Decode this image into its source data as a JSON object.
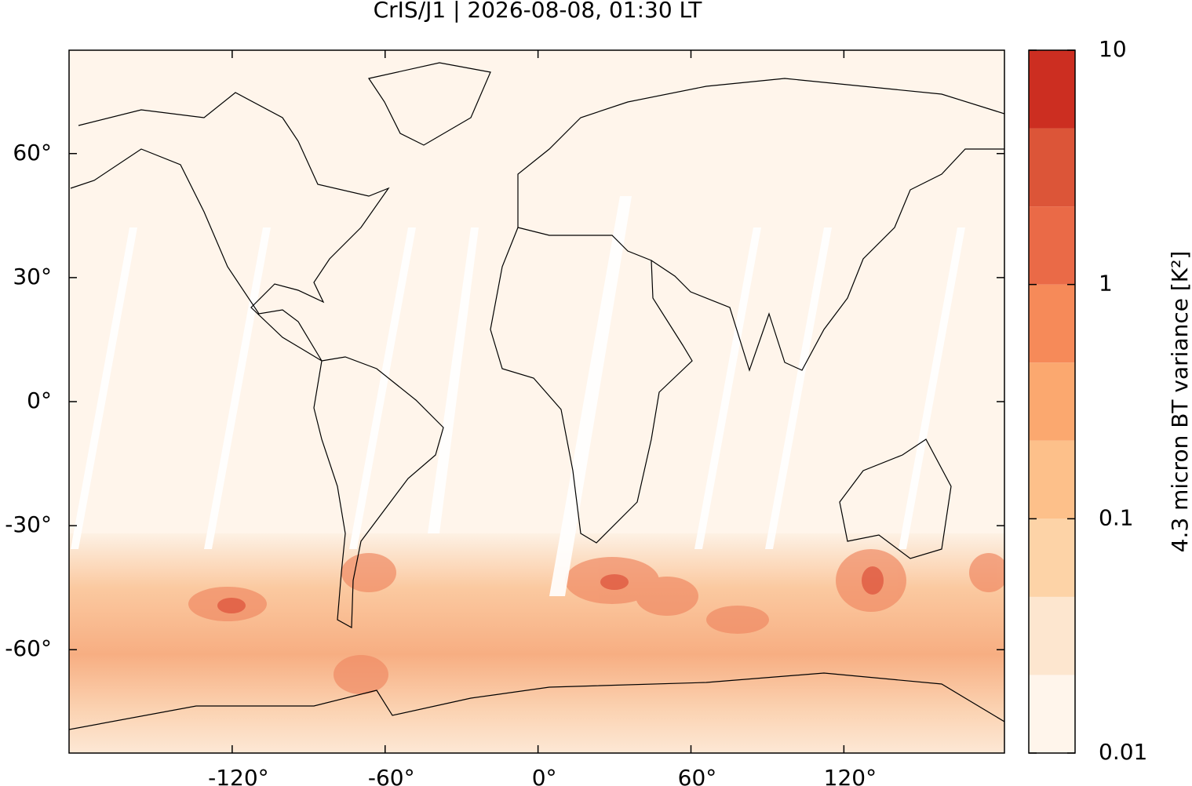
{
  "chart_data": {
    "type": "map",
    "title": "CrIS/J1 | 2026-08-08, 01:30 LT",
    "xlim": [
      -184,
      183
    ],
    "ylim": [
      -85,
      85
    ],
    "xticks": [
      {
        "value": -120,
        "label": "-120°"
      },
      {
        "value": -60,
        "label": "-60°"
      },
      {
        "value": 0,
        "label": "0°"
      },
      {
        "value": 60,
        "label": "60°"
      },
      {
        "value": 120,
        "label": "120°"
      }
    ],
    "yticks": [
      {
        "value": -60,
        "label": "-60°"
      },
      {
        "value": -30,
        "label": "-30°"
      },
      {
        "value": 0,
        "label": "0°"
      },
      {
        "value": 30,
        "label": "30°"
      },
      {
        "value": 60,
        "label": "60°"
      }
    ],
    "colorbar": {
      "label": "4.3 micron BT variance [K²]",
      "scale": "log",
      "levels": [
        0.01,
        0.02,
        0.05,
        0.1,
        0.2,
        0.5,
        1,
        2,
        5,
        10
      ],
      "colors": [
        "#fff5eb",
        "#fde6cf",
        "#fdd3a7",
        "#fdc08a",
        "#fba86f",
        "#f68a59",
        "#ea6a47",
        "#dc5538",
        "#cc2e21",
        "#990000"
      ],
      "ticks": [
        0.01,
        0.1,
        1,
        10
      ]
    }
  }
}
